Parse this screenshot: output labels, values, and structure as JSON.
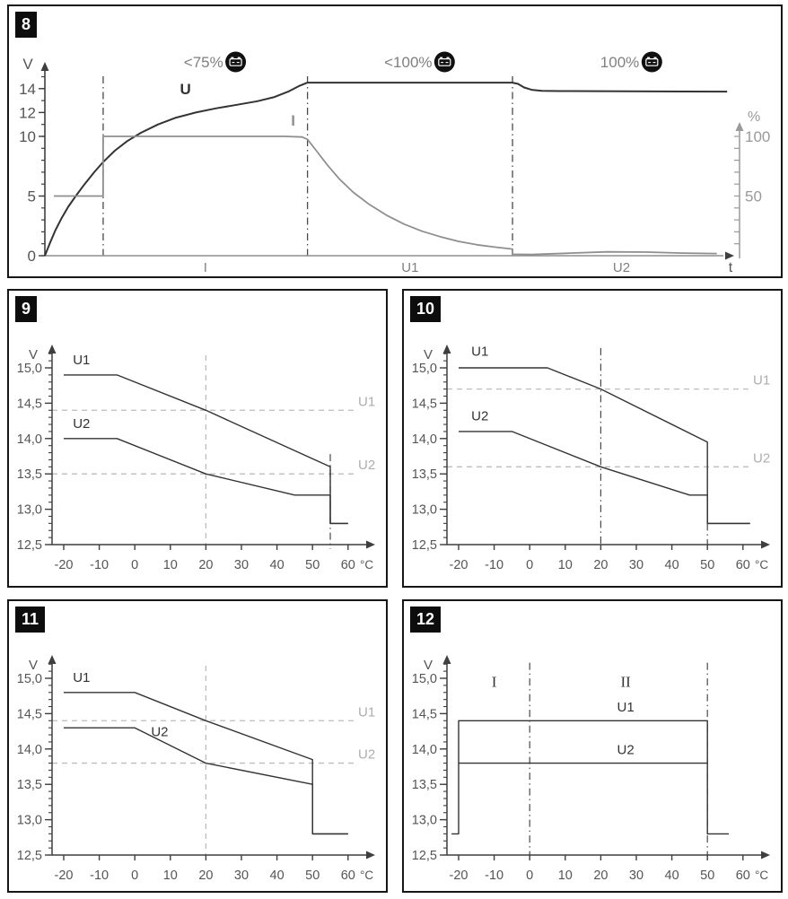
{
  "figures": [
    {
      "badge": "8"
    },
    {
      "badge": "9"
    },
    {
      "badge": "10"
    },
    {
      "badge": "11"
    },
    {
      "badge": "12"
    }
  ],
  "colors": {
    "dark_curve": "#333333",
    "gray_curve": "#8f8f8f",
    "axis_dark": "#3f3f3f",
    "axis_gray": "#9a9a9a",
    "dashdot": "#4a4a4a",
    "light_dash": "#bdbdbd",
    "ref_label": "#aeaeae",
    "tick_text": "#555555",
    "gray_text": "#808080",
    "badge_bg": "#0d0d0d",
    "badge_fg": "#ffffff"
  },
  "chart_data": [
    {
      "id": "8",
      "type": "line",
      "subtype": "charge_profile",
      "ylabel_left": "V",
      "ylabel_right": "%",
      "xlabel": "t",
      "ylim": [
        0,
        15
      ],
      "yticks_labeled": [
        0,
        5,
        10,
        12,
        14
      ],
      "y_minor_step": 1,
      "right_lim": [
        0,
        100
      ],
      "right_ticks_labeled": [
        50,
        100
      ],
      "right_minor_step": 10,
      "xlim": [
        0,
        100
      ],
      "phase_boundaries_t": [
        8.5,
        38.3,
        68.2
      ],
      "phase_labels": [
        "I",
        "U1",
        "U2"
      ],
      "annotations": [
        {
          "text": "<75%",
          "icon": "battery-icon"
        },
        {
          "text": "<100%",
          "icon": "battery-icon"
        },
        {
          "text": "100%",
          "icon": "battery-icon"
        }
      ],
      "series": [
        {
          "name": "U",
          "color_role": "dark",
          "width": 2,
          "label_at": [
            20.5,
            13.55
          ],
          "points": [
            [
              0,
              0
            ],
            [
              0.7,
              1.0
            ],
            [
              1.5,
              2.1
            ],
            [
              2.4,
              3.1
            ],
            [
              3.4,
              4.1
            ],
            [
              4.5,
              5.0
            ],
            [
              5.8,
              6.0
            ],
            [
              7.2,
              7.0
            ],
            [
              8.5,
              7.85
            ],
            [
              10.2,
              8.8
            ],
            [
              12,
              9.6
            ],
            [
              14,
              10.3
            ],
            [
              16.5,
              11.0
            ],
            [
              19,
              11.55
            ],
            [
              22,
              12.0
            ],
            [
              25,
              12.35
            ],
            [
              28,
              12.65
            ],
            [
              31,
              12.95
            ],
            [
              33.5,
              13.3
            ],
            [
              35.5,
              13.75
            ],
            [
              37,
              14.2
            ],
            [
              38.3,
              14.5
            ],
            [
              68.2,
              14.5
            ],
            [
              69,
              14.4
            ],
            [
              69.9,
              14.1
            ],
            [
              71,
              13.9
            ],
            [
              72.5,
              13.82
            ],
            [
              75,
              13.8
            ],
            [
              99.5,
              13.75
            ]
          ]
        },
        {
          "name": "I",
          "color_role": "gray",
          "width": 1.8,
          "label_at": [
            36.2,
            10.9
          ],
          "points": [
            [
              1.3,
              5
            ],
            [
              8.5,
              5
            ],
            [
              8.5,
              10
            ],
            [
              35,
              10
            ],
            [
              37.5,
              9.95
            ],
            [
              38.3,
              9.75
            ],
            [
              39.6,
              8.8
            ],
            [
              41.2,
              7.6
            ],
            [
              43,
              6.4
            ],
            [
              45,
              5.3
            ],
            [
              47.3,
              4.3
            ],
            [
              49.8,
              3.4
            ],
            [
              52.4,
              2.65
            ],
            [
              55,
              2.05
            ],
            [
              57.6,
              1.6
            ],
            [
              60.3,
              1.2
            ],
            [
              63,
              0.92
            ],
            [
              65.6,
              0.72
            ],
            [
              67.5,
              0.6
            ],
            [
              68.2,
              0.56
            ],
            [
              68.2,
              0.12
            ],
            [
              71,
              0.1
            ],
            [
              76,
              0.2
            ],
            [
              82,
              0.32
            ],
            [
              88,
              0.3
            ],
            [
              93,
              0.22
            ],
            [
              98,
              0.18
            ]
          ]
        }
      ]
    },
    {
      "id": "9",
      "type": "line",
      "subtype": "temp_voltage",
      "ylabel": "V",
      "x_unit": "°C",
      "xlim": [
        -20,
        60
      ],
      "ylim": [
        12.5,
        15.0
      ],
      "xticks": [
        -20,
        -10,
        0,
        10,
        20,
        30,
        40,
        50,
        60
      ],
      "yticks": [
        12.5,
        13.0,
        13.5,
        14.0,
        14.5,
        15.0
      ],
      "ytick_labels": [
        "12,5",
        "13,0",
        "13,5",
        "14,0",
        "14,5",
        "15,0"
      ],
      "series": [
        {
          "name": "U1",
          "label_at": [
            -15,
            15.05
          ],
          "points": [
            [
              -20,
              14.9
            ],
            [
              -5,
              14.9
            ],
            [
              20,
              14.4
            ],
            [
              55,
              13.6
            ],
            [
              55,
              12.8
            ],
            [
              60,
              12.8
            ]
          ]
        },
        {
          "name": "U2",
          "label_at": [
            -15,
            14.15
          ],
          "points": [
            [
              -20,
              14.0
            ],
            [
              -5,
              14.0
            ],
            [
              20,
              13.5
            ],
            [
              45,
              13.2
            ],
            [
              55,
              13.2
            ],
            [
              55,
              12.8
            ],
            [
              60,
              12.8
            ]
          ]
        }
      ],
      "ref_lines_h": [
        {
          "value": 14.4,
          "label": "U1"
        },
        {
          "value": 13.5,
          "label": "U2"
        }
      ],
      "ref_lines_v_dashed": [
        20
      ],
      "ref_lines_v_dashdot": [
        [
          55,
          13.78,
          12.44
        ]
      ],
      "region_labels": []
    },
    {
      "id": "10",
      "type": "line",
      "subtype": "temp_voltage",
      "ylabel": "V",
      "x_unit": "°C",
      "xlim": [
        -20,
        62
      ],
      "ylim": [
        12.5,
        15.0
      ],
      "xticks": [
        -20,
        -10,
        0,
        10,
        20,
        30,
        40,
        50,
        60
      ],
      "yticks": [
        12.5,
        13.0,
        13.5,
        14.0,
        14.5,
        15.0
      ],
      "ytick_labels": [
        "12,5",
        "13,0",
        "13,5",
        "14,0",
        "14,5",
        "15,0"
      ],
      "series": [
        {
          "name": "U1",
          "label_at": [
            -14,
            15.17
          ],
          "points": [
            [
              -20,
              15.0
            ],
            [
              5,
              15.0
            ],
            [
              20,
              14.7
            ],
            [
              50,
              13.95
            ],
            [
              50,
              12.8
            ],
            [
              62,
              12.8
            ]
          ]
        },
        {
          "name": "U2",
          "label_at": [
            -14,
            14.26
          ],
          "points": [
            [
              -20,
              14.1
            ],
            [
              -5,
              14.1
            ],
            [
              20,
              13.6
            ],
            [
              45,
              13.2
            ],
            [
              50,
              13.2
            ],
            [
              50,
              12.8
            ],
            [
              62,
              12.8
            ]
          ]
        }
      ],
      "ref_lines_h": [
        {
          "value": 14.7,
          "label": "U1"
        },
        {
          "value": 13.6,
          "label": "U2"
        }
      ],
      "ref_lines_v_dashed": [],
      "ref_lines_v_dashdot": [
        [
          20,
          15.28,
          12.46
        ],
        [
          50,
          12.8,
          12.44
        ]
      ],
      "region_labels": []
    },
    {
      "id": "11",
      "type": "line",
      "subtype": "temp_voltage",
      "ylabel": "V",
      "x_unit": "°C",
      "xlim": [
        -20,
        60
      ],
      "ylim": [
        12.5,
        15.0
      ],
      "xticks": [
        -20,
        -10,
        0,
        10,
        20,
        30,
        40,
        50,
        60
      ],
      "yticks": [
        12.5,
        13.0,
        13.5,
        14.0,
        14.5,
        15.0
      ],
      "ytick_labels": [
        "12,5",
        "13,0",
        "13,5",
        "14,0",
        "14,5",
        "15,0"
      ],
      "series": [
        {
          "name": "U1",
          "label_at": [
            -15,
            14.95
          ],
          "points": [
            [
              -20,
              14.8
            ],
            [
              0,
              14.8
            ],
            [
              20,
              14.4
            ],
            [
              50,
              13.85
            ],
            [
              50,
              12.8
            ],
            [
              60,
              12.8
            ]
          ]
        },
        {
          "name": "U2",
          "label_at": [
            7,
            14.18
          ],
          "points": [
            [
              -20,
              14.3
            ],
            [
              0,
              14.3
            ],
            [
              20,
              13.8
            ],
            [
              50,
              13.5
            ],
            [
              50,
              12.8
            ],
            [
              60,
              12.8
            ]
          ]
        }
      ],
      "ref_lines_h": [
        {
          "value": 14.4,
          "label": "U1"
        },
        {
          "value": 13.8,
          "label": "U2"
        }
      ],
      "ref_lines_v_dashed": [
        20
      ],
      "ref_lines_v_dashdot": [],
      "region_labels": []
    },
    {
      "id": "12",
      "type": "line",
      "subtype": "temp_voltage",
      "ylabel": "V",
      "x_unit": "°C",
      "xlim": [
        -22,
        60
      ],
      "ylim": [
        12.5,
        15.0
      ],
      "xticks": [
        -20,
        -10,
        0,
        10,
        20,
        30,
        40,
        50,
        60
      ],
      "yticks": [
        12.5,
        13.0,
        13.5,
        14.0,
        14.5,
        15.0
      ],
      "ytick_labels": [
        "12,5",
        "13,0",
        "13,5",
        "14,0",
        "14,5",
        "15,0"
      ],
      "series": [
        {
          "name": "U1",
          "label_at": [
            27,
            14.53
          ],
          "points": [
            [
              -22,
              12.8
            ],
            [
              -20,
              12.8
            ],
            [
              -20,
              14.4
            ],
            [
              50,
              14.4
            ],
            [
              50,
              12.8
            ],
            [
              56,
              12.8
            ]
          ]
        },
        {
          "name": "U2",
          "label_at": [
            27,
            13.93
          ],
          "points": [
            [
              -20,
              13.8
            ],
            [
              50,
              13.8
            ]
          ]
        }
      ],
      "ref_lines_h": [],
      "ref_lines_v_dashed": [],
      "ref_lines_v_dashdot": [
        [
          0,
          15.22,
          12.5
        ],
        [
          50,
          15.22,
          12.5
        ]
      ],
      "region_labels": [
        {
          "text": "I",
          "x": -10,
          "y": 14.88
        },
        {
          "text": "II",
          "x": 27,
          "y": 14.88
        }
      ]
    }
  ]
}
